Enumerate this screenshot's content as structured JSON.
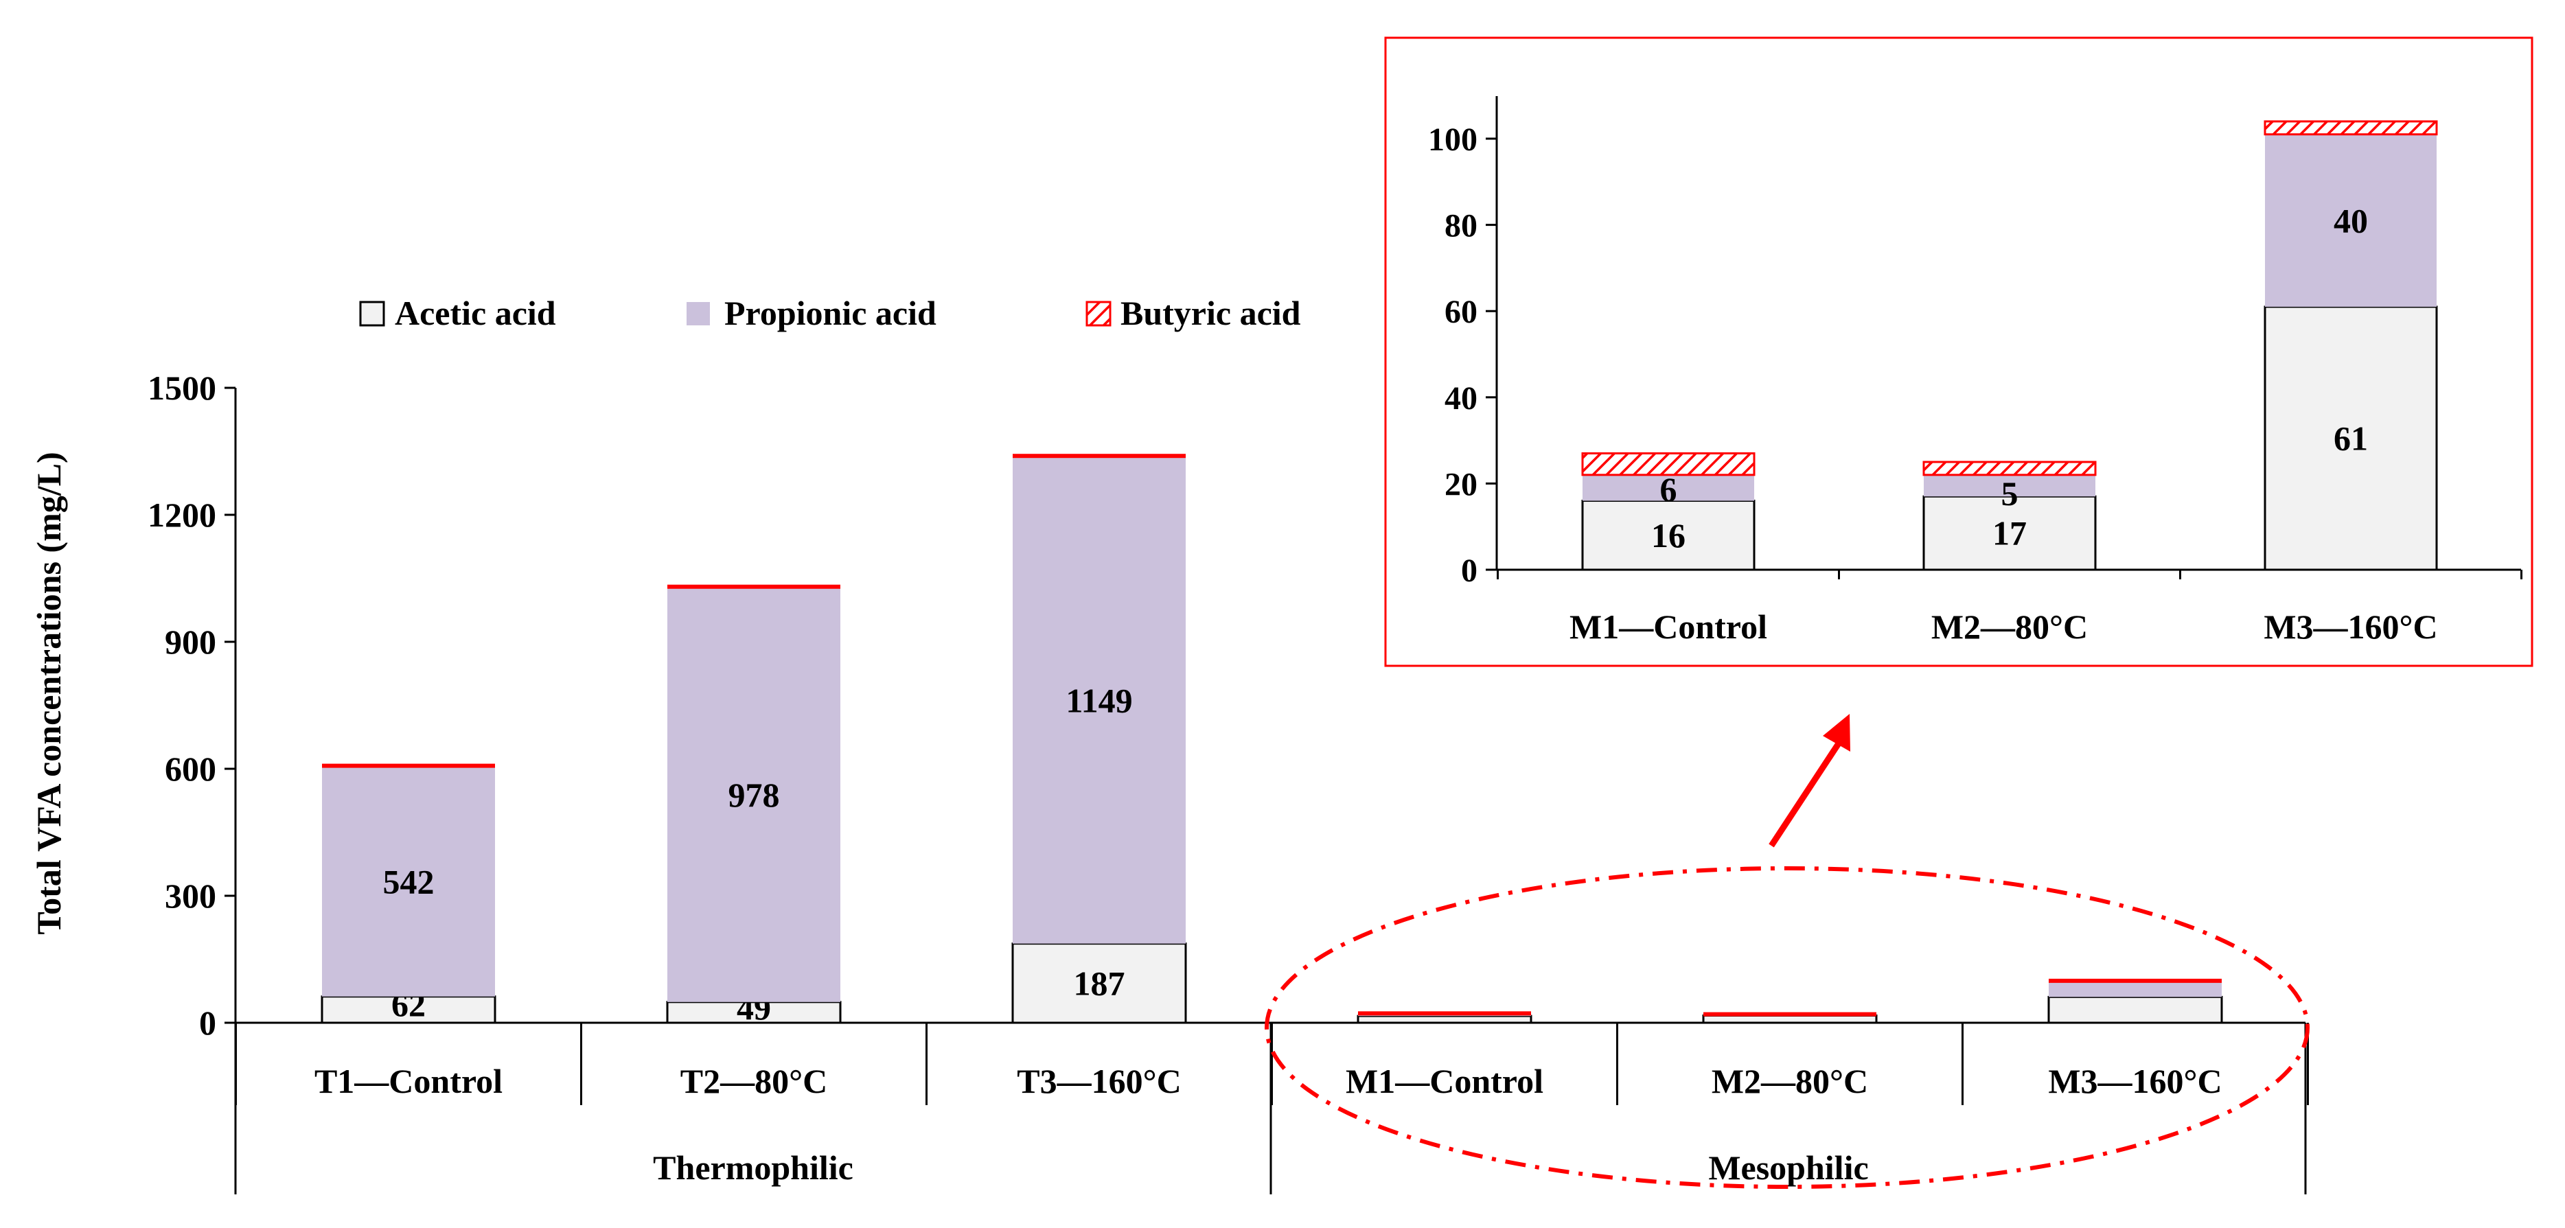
{
  "colors": {
    "acetic": "#f2f2f2",
    "propionic": "#cbc1dc",
    "butyric": "#ff0000",
    "axis": "#000000",
    "inset_border": "#ff0000",
    "annotation": "#ff0000"
  },
  "legend": {
    "items": [
      {
        "label": "Acetic acid",
        "kind": "acetic"
      },
      {
        "label": "Propionic acid",
        "kind": "propionic"
      },
      {
        "label": "Butyric acid",
        "kind": "butyric"
      }
    ]
  },
  "chart_data": [
    {
      "type": "bar",
      "stacked": true,
      "ylabel": "Total VFA concentrations (mg/L)",
      "ylim": [
        0,
        1500
      ],
      "yticks": [
        "0",
        "300",
        "600",
        "900",
        "1200",
        "1500"
      ],
      "categories": [
        "T1—Control",
        "T2—80°C",
        "T3—160°C",
        "M1—Control",
        "M2—80°C",
        "M3—160°C"
      ],
      "groups": [
        {
          "label": "Thermophilic",
          "categories": [
            "T1—Control",
            "T2—80°C",
            "T3—160°C"
          ]
        },
        {
          "label": "Mesophilic",
          "categories": [
            "M1—Control",
            "M2—80°C",
            "M3—160°C"
          ]
        }
      ],
      "series": [
        {
          "name": "Acetic acid",
          "values": [
            62,
            49,
            187,
            16,
            17,
            61
          ],
          "labels": [
            "62",
            "49",
            "187",
            "",
            "",
            ""
          ]
        },
        {
          "name": "Propionic acid",
          "values": [
            542,
            978,
            1149,
            6,
            5,
            40
          ],
          "labels": [
            "542",
            "978",
            "1149",
            "",
            "",
            ""
          ]
        },
        {
          "name": "Butyric acid",
          "values": [
            8,
            8,
            8,
            5,
            3,
            3
          ],
          "labels": [
            "",
            "",
            "",
            "",
            "",
            ""
          ]
        }
      ],
      "legend_position": "top"
    },
    {
      "type": "bar",
      "stacked": true,
      "ylim": [
        0,
        110
      ],
      "yticks": [
        "0",
        "20",
        "40",
        "60",
        "80",
        "100"
      ],
      "categories": [
        "M1—Control",
        "M2—80°C",
        "M3—160°C"
      ],
      "series": [
        {
          "name": "Acetic acid",
          "values": [
            16,
            17,
            61
          ],
          "labels": [
            "16",
            "17",
            "61"
          ]
        },
        {
          "name": "Propionic acid",
          "values": [
            6,
            5,
            40
          ],
          "labels": [
            "6",
            "5",
            "40"
          ]
        },
        {
          "name": "Butyric acid",
          "values": [
            5,
            3,
            3
          ],
          "labels": [
            "",
            "",
            ""
          ]
        }
      ]
    }
  ]
}
